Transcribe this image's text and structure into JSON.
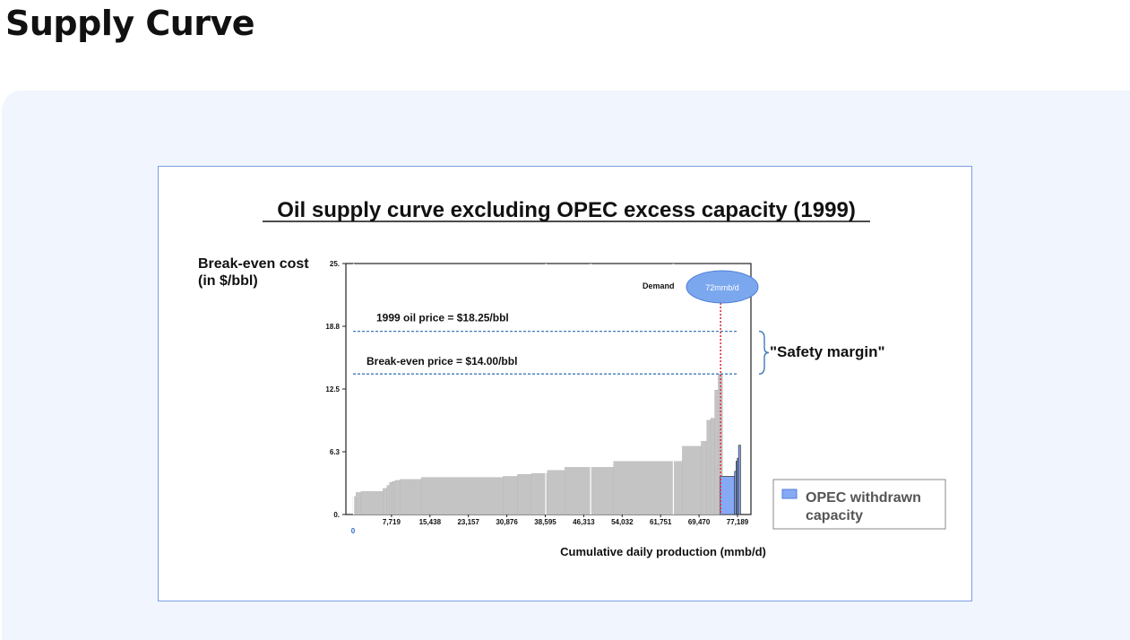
{
  "page": {
    "title": "Supply Curve"
  },
  "chart_data": {
    "type": "bar",
    "title": "Oil supply curve excluding OPEC excess capacity (1999)",
    "xlabel": "Cumulative daily production (mmb/d)",
    "ylabel": "Break-even cost",
    "ylabel_unit": "(in $/bbl)",
    "xlim": [
      0,
      77189
    ],
    "ylim": [
      0,
      25
    ],
    "x_ticks": [
      "7,719",
      "15,438",
      "23,157",
      "30,876",
      "38,595",
      "46,313",
      "54,032",
      "61,751",
      "69,470",
      "77,189"
    ],
    "x_origin_label": "0",
    "y_ticks": [
      "0.",
      "6.3",
      "12.5",
      "18.8",
      "25."
    ],
    "grid": false,
    "bars_gray": [
      {
        "x0": 0,
        "x1": 600,
        "y": 1.8
      },
      {
        "x0": 600,
        "x1": 1600,
        "y": 2.2
      },
      {
        "x0": 1600,
        "x1": 6000,
        "y": 2.3
      },
      {
        "x0": 6000,
        "x1": 6800,
        "y": 2.6
      },
      {
        "x0": 6800,
        "x1": 7300,
        "y": 2.9
      },
      {
        "x0": 7300,
        "x1": 7800,
        "y": 3.2
      },
      {
        "x0": 7800,
        "x1": 8400,
        "y": 3.3
      },
      {
        "x0": 8400,
        "x1": 9400,
        "y": 3.4
      },
      {
        "x0": 9400,
        "x1": 13700,
        "y": 3.5
      },
      {
        "x0": 13700,
        "x1": 30100,
        "y": 3.7
      },
      {
        "x0": 30100,
        "x1": 33000,
        "y": 3.8
      },
      {
        "x0": 33000,
        "x1": 35800,
        "y": 4.0
      },
      {
        "x0": 35800,
        "x1": 39000,
        "y": 4.1
      },
      {
        "x0": 39000,
        "x1": 42500,
        "y": 4.4
      },
      {
        "x0": 42500,
        "x1": 52300,
        "y": 4.7
      },
      {
        "x0": 52300,
        "x1": 66100,
        "y": 5.3
      },
      {
        "x0": 66100,
        "x1": 69900,
        "y": 6.8
      },
      {
        "x0": 69900,
        "x1": 71000,
        "y": 7.3
      },
      {
        "x0": 71000,
        "x1": 71800,
        "y": 9.4
      },
      {
        "x0": 71800,
        "x1": 72600,
        "y": 9.6
      },
      {
        "x0": 72600,
        "x1": 73300,
        "y": 12.4
      },
      {
        "x0": 73300,
        "x1": 74200,
        "y": 14.0
      }
    ],
    "bars_opec": [
      {
        "x0": 73700,
        "x1": 76600,
        "y": 3.8
      },
      {
        "x0": 76600,
        "x1": 76900,
        "y": 4.3
      },
      {
        "x0": 76900,
        "x1": 77150,
        "y": 5.3
      },
      {
        "x0": 77150,
        "x1": 77400,
        "y": 5.6
      },
      {
        "x0": 77400,
        "x1": 77800,
        "y": 6.9
      }
    ],
    "colors": {
      "gray_bar": "#c4c4c4",
      "opec_bar": "#86a9f5",
      "price_line": "#3f79b8",
      "demand_line": "#e0323e",
      "ellipse": "#7ba7ef"
    },
    "annotations": {
      "oil_price": {
        "label": "1999 oil price  = $18.25/bbl",
        "y": 18.25
      },
      "break_even": {
        "label": "Break-even price = $14.00/bbl",
        "y": 14.0
      },
      "demand": {
        "label": "Demand",
        "value_label": "72mmb/d",
        "x": 73800
      },
      "safety_margin": "\"Safety margin\""
    },
    "legend": {
      "label_line1": "OPEC withdrawn",
      "label_line2": "capacity",
      "position": "bottom-right"
    }
  }
}
